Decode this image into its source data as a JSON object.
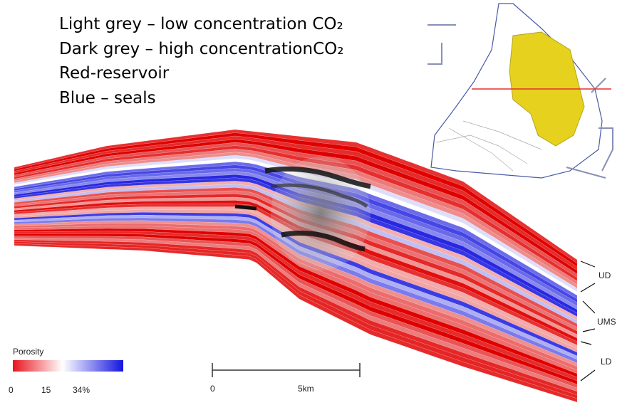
{
  "legend_text": {
    "lines": [
      "Light grey – low concentration CO₂",
      "Dark grey – high concentrationCO₂",
      "Red-reservoir",
      "Blue – seals"
    ]
  },
  "colorbar": {
    "label": "Porosity",
    "ticks": [
      "0",
      "15",
      "34%"
    ]
  },
  "scale_bar": {
    "start": "0",
    "end": "5km"
  },
  "units": [
    "UD",
    "UMS",
    "LD"
  ]
}
